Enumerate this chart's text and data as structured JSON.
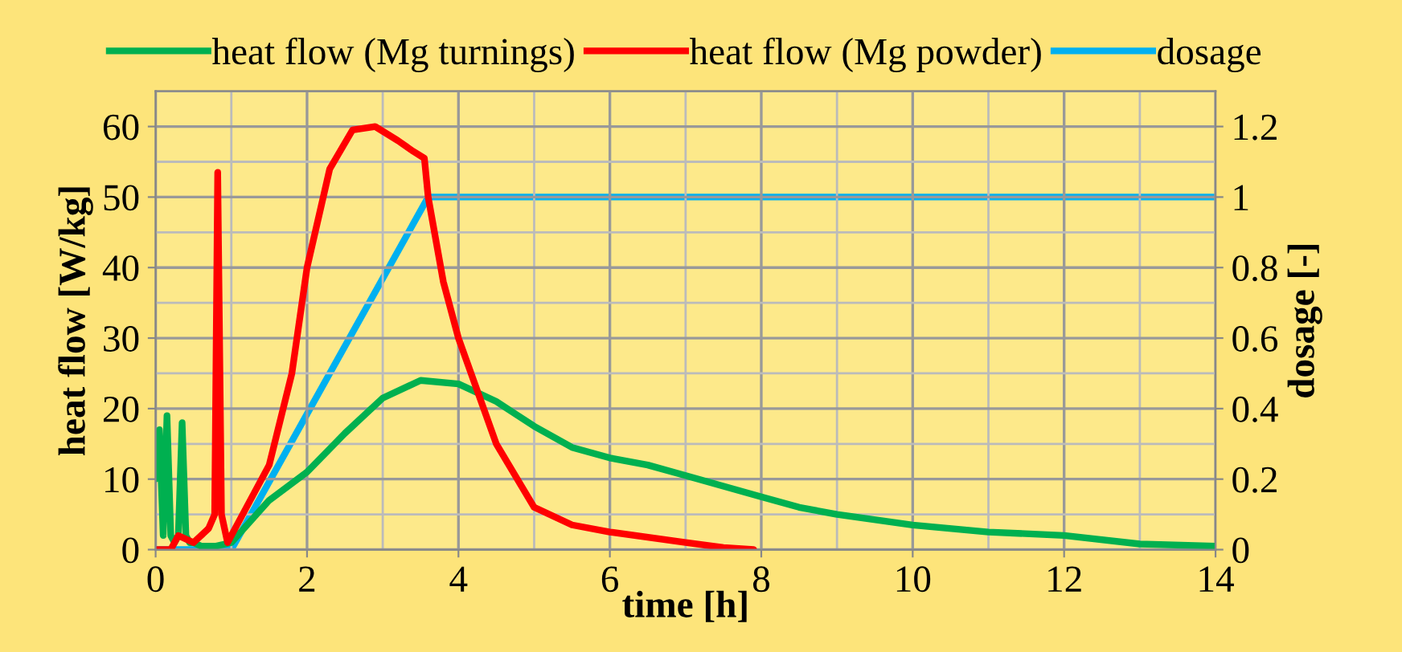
{
  "chart_data": {
    "type": "line",
    "xlabel": "time [h]",
    "ylabel": "heat flow [W/kg]",
    "y2label": "dosage [-]",
    "series": [
      {
        "name": "heat flow (Mg turnings)",
        "color": "#00b050",
        "x": [
          0,
          0.05,
          0.1,
          0.15,
          0.2,
          0.25,
          0.3,
          0.35,
          0.4,
          0.45,
          0.5,
          0.6,
          0.8,
          1.0,
          1.5,
          2.0,
          2.5,
          3.0,
          3.5,
          4.0,
          4.5,
          5.0,
          5.5,
          6.0,
          6.5,
          7.0,
          7.5,
          8.0,
          8.5,
          9.0,
          10.0,
          11.0,
          12.0,
          13.0,
          14.0
        ],
        "values": [
          10,
          17,
          2,
          19,
          2,
          1,
          2,
          18,
          2,
          1,
          1,
          0.5,
          0.5,
          1,
          7,
          11,
          16.5,
          21.5,
          24,
          23.5,
          21,
          17.5,
          14.5,
          13,
          12,
          10.5,
          9,
          7.5,
          6,
          5,
          3.5,
          2.5,
          2,
          0.8,
          0.5
        ]
      },
      {
        "name": "heat flow (Mg powder)",
        "color": "#ff0000",
        "x": [
          0,
          0.2,
          0.3,
          0.5,
          0.7,
          0.78,
          0.82,
          0.87,
          0.95,
          1.1,
          1.5,
          1.8,
          2.0,
          2.3,
          2.6,
          2.9,
          3.2,
          3.4,
          3.55,
          3.6,
          3.8,
          4.0,
          4.5,
          5.0,
          5.5,
          6.0,
          7.0,
          7.5,
          7.9
        ],
        "values": [
          0,
          0,
          2,
          1,
          3,
          5,
          53.5,
          5,
          1,
          4,
          12,
          25,
          40,
          54,
          59.5,
          60,
          58,
          56.5,
          55.5,
          50,
          38,
          30,
          15,
          6,
          3.5,
          2.5,
          1,
          0.3,
          0
        ]
      },
      {
        "name": "dosage",
        "color": "#00b0f0",
        "axis": "y2",
        "x": [
          0,
          1.0,
          3.6,
          14
        ],
        "values": [
          0,
          0,
          1,
          1
        ]
      }
    ],
    "xlim": [
      0,
      14
    ],
    "xticks": [
      0,
      2,
      4,
      6,
      8,
      10,
      12,
      14
    ],
    "ylim": [
      0,
      65
    ],
    "yticks": [
      0,
      10,
      20,
      30,
      40,
      50,
      60
    ],
    "y2lim": [
      0,
      1.3
    ],
    "y2ticks": [
      0,
      0.2,
      0.4,
      0.6,
      0.8,
      1,
      1.2
    ],
    "grid": true,
    "legend": "top",
    "marker": "none",
    "line_style": "solid"
  }
}
